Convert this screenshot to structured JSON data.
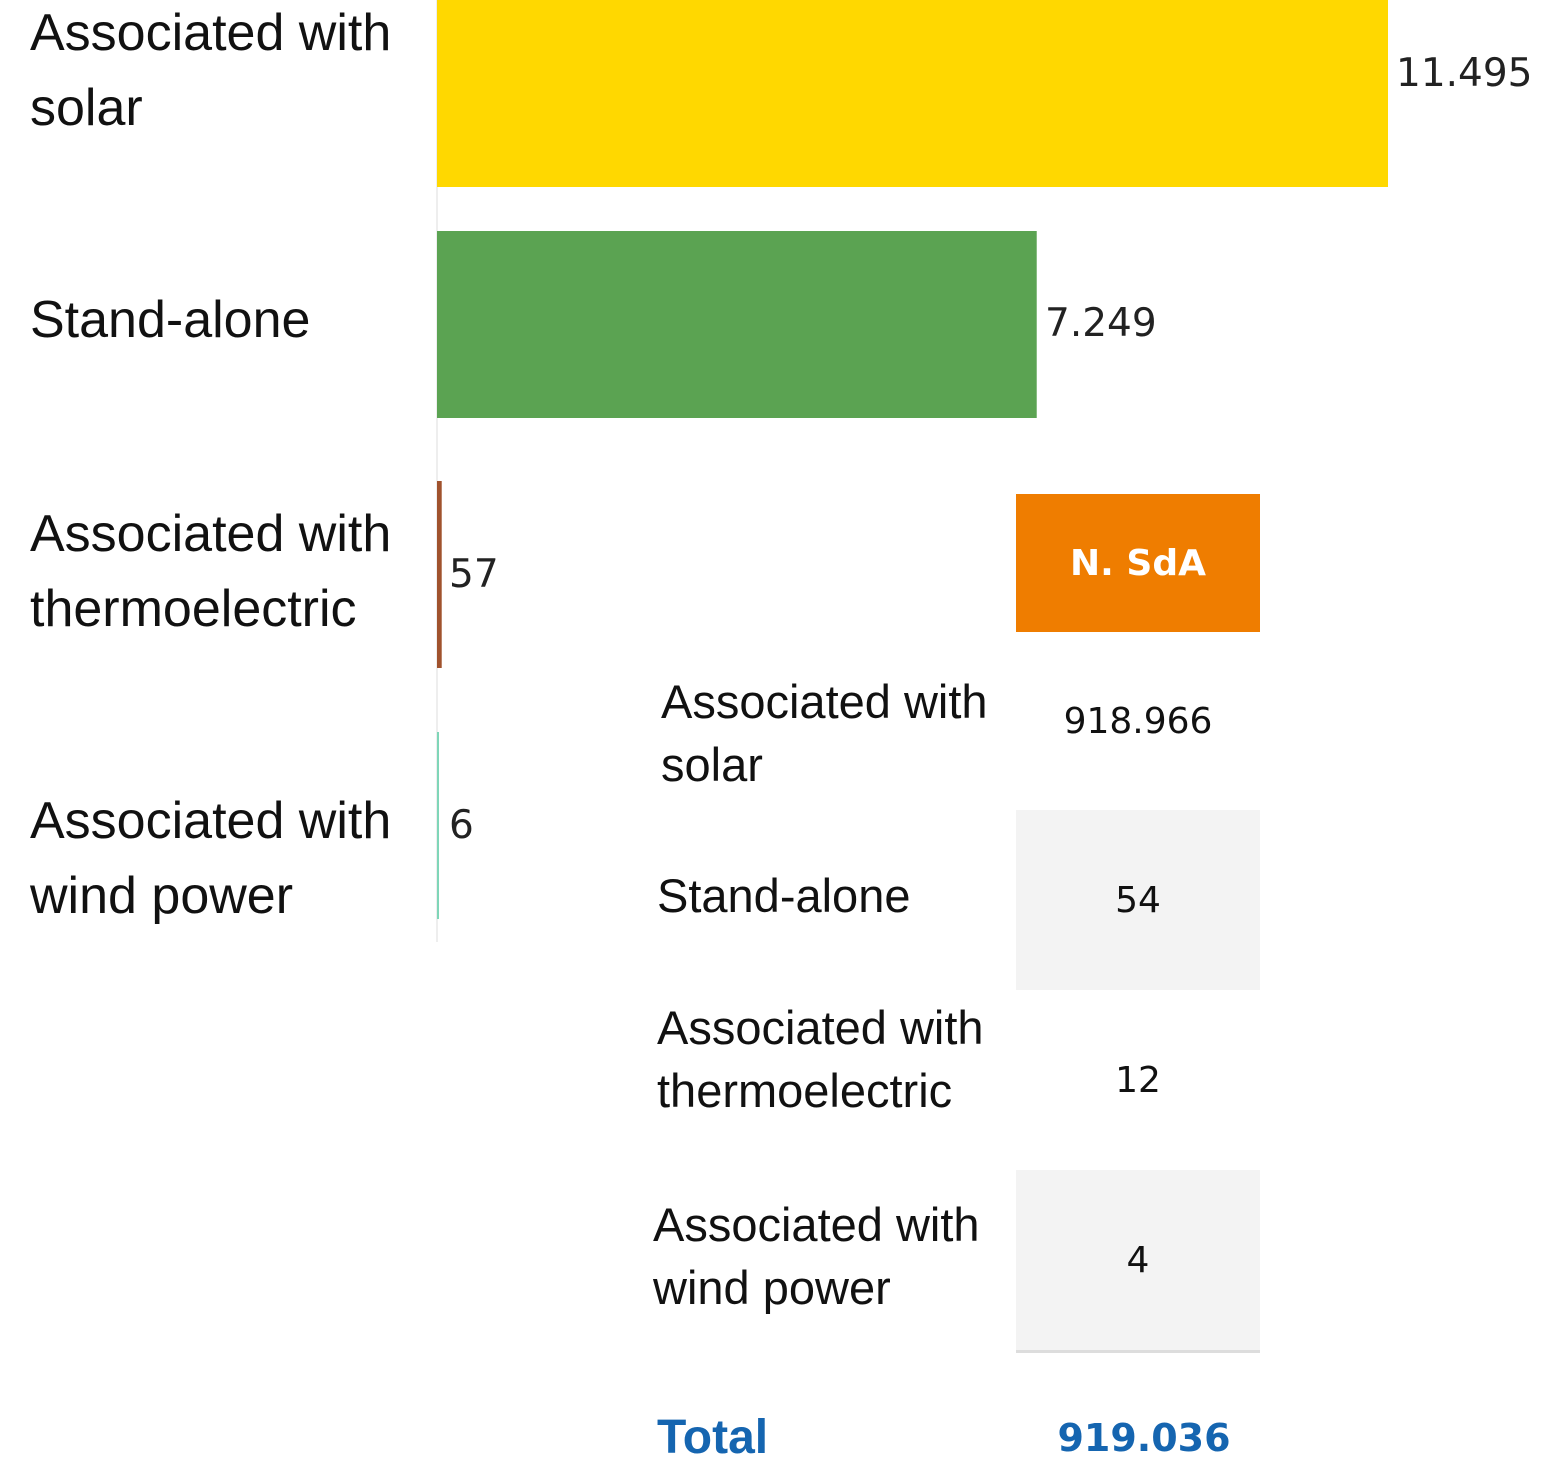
{
  "chart_data": {
    "type": "bar",
    "orientation": "horizontal",
    "categories": [
      "Associated with\n solar",
      "Stand-alone",
      "Associated with\nthermoelectric",
      "Associated with\nwind power"
    ],
    "values": [
      11495,
      7249,
      57,
      6
    ],
    "value_labels": [
      "11.495",
      "7.249",
      "57",
      "6"
    ],
    "colors": [
      "#ffd800",
      "#5ba352",
      "#a0522d",
      "#7fd6b8"
    ],
    "xlim": [
      0,
      11495
    ],
    "grid": false,
    "legend": "none"
  },
  "table": {
    "header": "N. SdA",
    "rows": [
      {
        "label": "Associated with\n solar",
        "value": "918.966"
      },
      {
        "label": "Stand-alone",
        "value": "54"
      },
      {
        "label": "Associated with\nthermoelectric",
        "value": "12"
      },
      {
        "label": "Associated with\nwind power",
        "value": "4"
      }
    ],
    "total_label": "Total",
    "total_value": "919.036",
    "colors": {
      "header_bg": "#ef7d00",
      "total_text": "#1565b0",
      "shaded_row": "#f3f3f3"
    }
  }
}
